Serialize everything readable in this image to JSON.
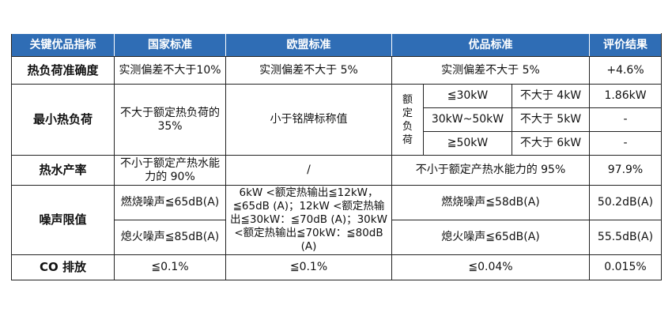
{
  "headers": [
    "关键优品指标",
    "国家标准",
    "欧盟标准",
    "优品标准",
    "评价结果"
  ],
  "rows": {
    "accuracy": {
      "label": "热负荷准确度",
      "national": "实测偏差不大于10%",
      "eu": "实测偏差不大于 5%",
      "premium": "实测偏差不大于 5%",
      "result": "+4.6%"
    },
    "min_load": {
      "label": "最小热负荷",
      "national": "不大于额定热负荷的 35%",
      "eu": "小于铭牌标称值",
      "premium_group_label": [
        "额",
        "定",
        "负",
        "荷"
      ],
      "sub": [
        {
          "range": "≦30kW",
          "limit": "不大于 4kW",
          "result": "1.86kW"
        },
        {
          "range": "30kW~50kW",
          "limit": "不大于 5kW",
          "result": "-"
        },
        {
          "range": "≧50kW",
          "limit": "不大于 6kW",
          "result": "-"
        }
      ]
    },
    "hot_water": {
      "label": "热水产率",
      "national": "不小于额定产热水能力的 90%",
      "eu": "/",
      "premium": "不小于额定产热水能力的 95%",
      "result": "97.9%"
    },
    "noise": {
      "label": "噪声限值",
      "burn_national": "燃烧噪声≦65dB(A)",
      "off_national": "熄火噪声≦85dB(A)",
      "eu": "6kW <额定热输出≦12kW，≦65dB (A)；12kW <额定热输出≦30kW：≦70dB (A)；30kW <额定热输出≦70kW：≦80dB (A)",
      "burn_premium": "燃烧噪声≦58dB(A)",
      "off_premium": "熄火噪声≦65dB(A)",
      "burn_result": "50.2dB(A)",
      "off_result": "55.5dB(A)"
    },
    "co": {
      "label": "CO 排放",
      "national": "≦0.1%",
      "eu": "≦0.1%",
      "premium": "≦0.04%",
      "result": "0.015%"
    }
  }
}
